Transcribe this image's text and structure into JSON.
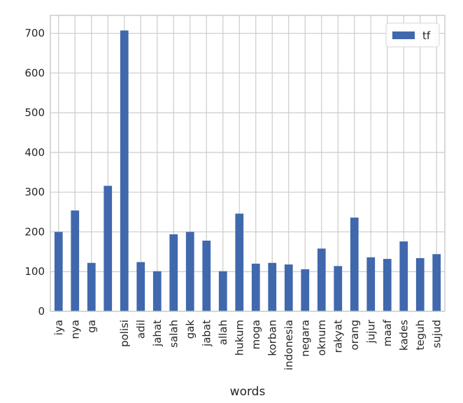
{
  "chart_data": {
    "type": "bar",
    "title": "",
    "xlabel": "words",
    "ylabel": "",
    "categories": [
      "iya",
      "nya",
      "ga",
      "",
      "polisi",
      "adil",
      "jahat",
      "salah",
      "gak",
      "jabat",
      "allah",
      "hukum",
      "moga",
      "korban",
      "indonesia",
      "negara",
      "oknum",
      "rakyat",
      "orang",
      "jujur",
      "maaf",
      "kades",
      "teguh",
      "sujud"
    ],
    "series": [
      {
        "name": "tf",
        "values": [
          200,
          254,
          122,
          316,
          707,
          124,
          101,
          194,
          200,
          178,
          101,
          246,
          120,
          122,
          118,
          106,
          158,
          114,
          236,
          136,
          132,
          176,
          134,
          144
        ]
      }
    ],
    "ylim": [
      0,
      745
    ],
    "yticks": [
      0,
      100,
      200,
      300,
      400,
      500,
      600,
      700
    ],
    "grid": true,
    "legend_position": "top-right",
    "colors": {
      "bar": "#4068ad",
      "grid": "#cccccc",
      "frame": "#cccccc",
      "text": "#262626"
    }
  }
}
